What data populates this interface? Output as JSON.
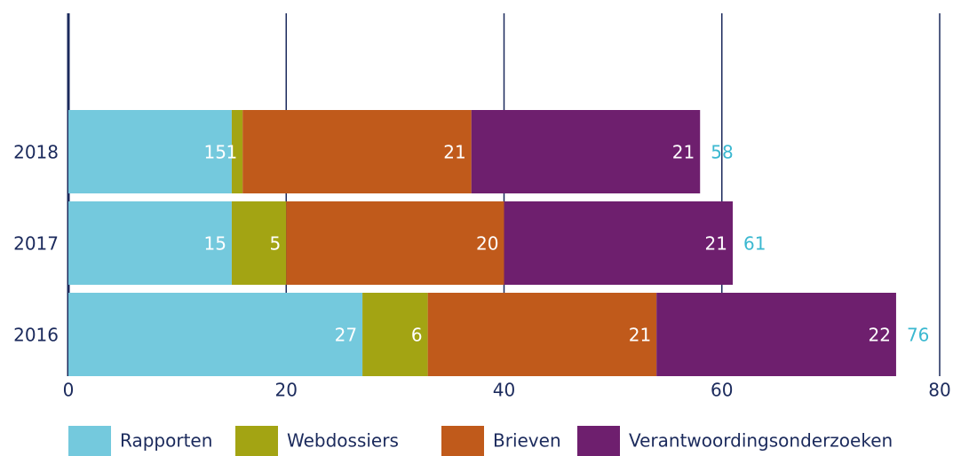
{
  "chart_data": {
    "type": "bar",
    "orientation": "horizontal",
    "stacked": true,
    "categories": [
      "2018",
      "2017",
      "2016"
    ],
    "series": [
      {
        "name": "Rapporten",
        "color": "#74c9dd",
        "values": [
          15,
          15,
          27
        ]
      },
      {
        "name": "Webdossiers",
        "color": "#a3a413",
        "values": [
          1,
          5,
          6
        ]
      },
      {
        "name": "Brieven",
        "color": "#c05a1b",
        "values": [
          21,
          20,
          21
        ]
      },
      {
        "name": "Verantwoordingsonderzoeken",
        "color": "#6e1f6e",
        "values": [
          21,
          21,
          22
        ]
      }
    ],
    "totals": [
      58,
      61,
      76
    ],
    "xlim": [
      0,
      80
    ],
    "xticks": [
      0,
      20,
      40,
      60,
      80
    ],
    "grid": true,
    "legend": "bottom"
  }
}
